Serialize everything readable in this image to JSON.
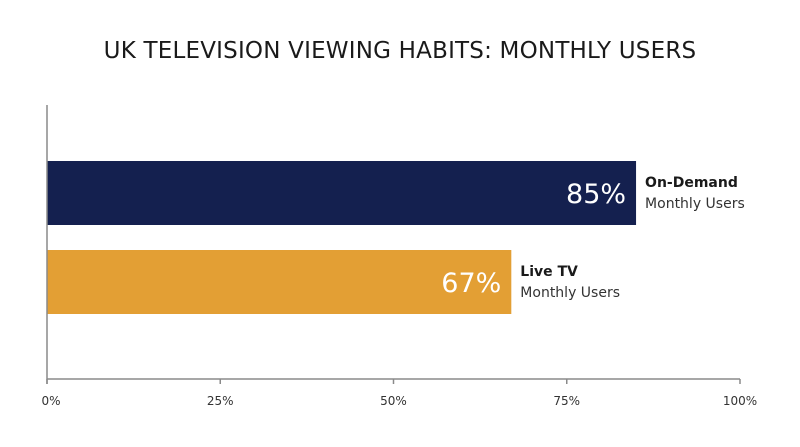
{
  "chart_data": {
    "type": "bar",
    "orientation": "horizontal",
    "title": "UK TELEVISION VIEWING HABITS: MONTHLY USERS",
    "categories": [
      {
        "name": "On-Demand",
        "subtitle": "Monthly Users",
        "value": 85,
        "value_label": "85%",
        "color": "#14204f"
      },
      {
        "name": "Live TV",
        "subtitle": "Monthly Users",
        "value": 67,
        "value_label": "67%",
        "color": "#e39f34"
      }
    ],
    "xlim": [
      0,
      100
    ],
    "ticks": [
      {
        "value": 0,
        "label": "0%"
      },
      {
        "value": 25,
        "label": "25%"
      },
      {
        "value": 50,
        "label": "50%"
      },
      {
        "value": 75,
        "label": "75%"
      },
      {
        "value": 100,
        "label": "100%"
      }
    ],
    "grid": false,
    "legend": "none"
  }
}
